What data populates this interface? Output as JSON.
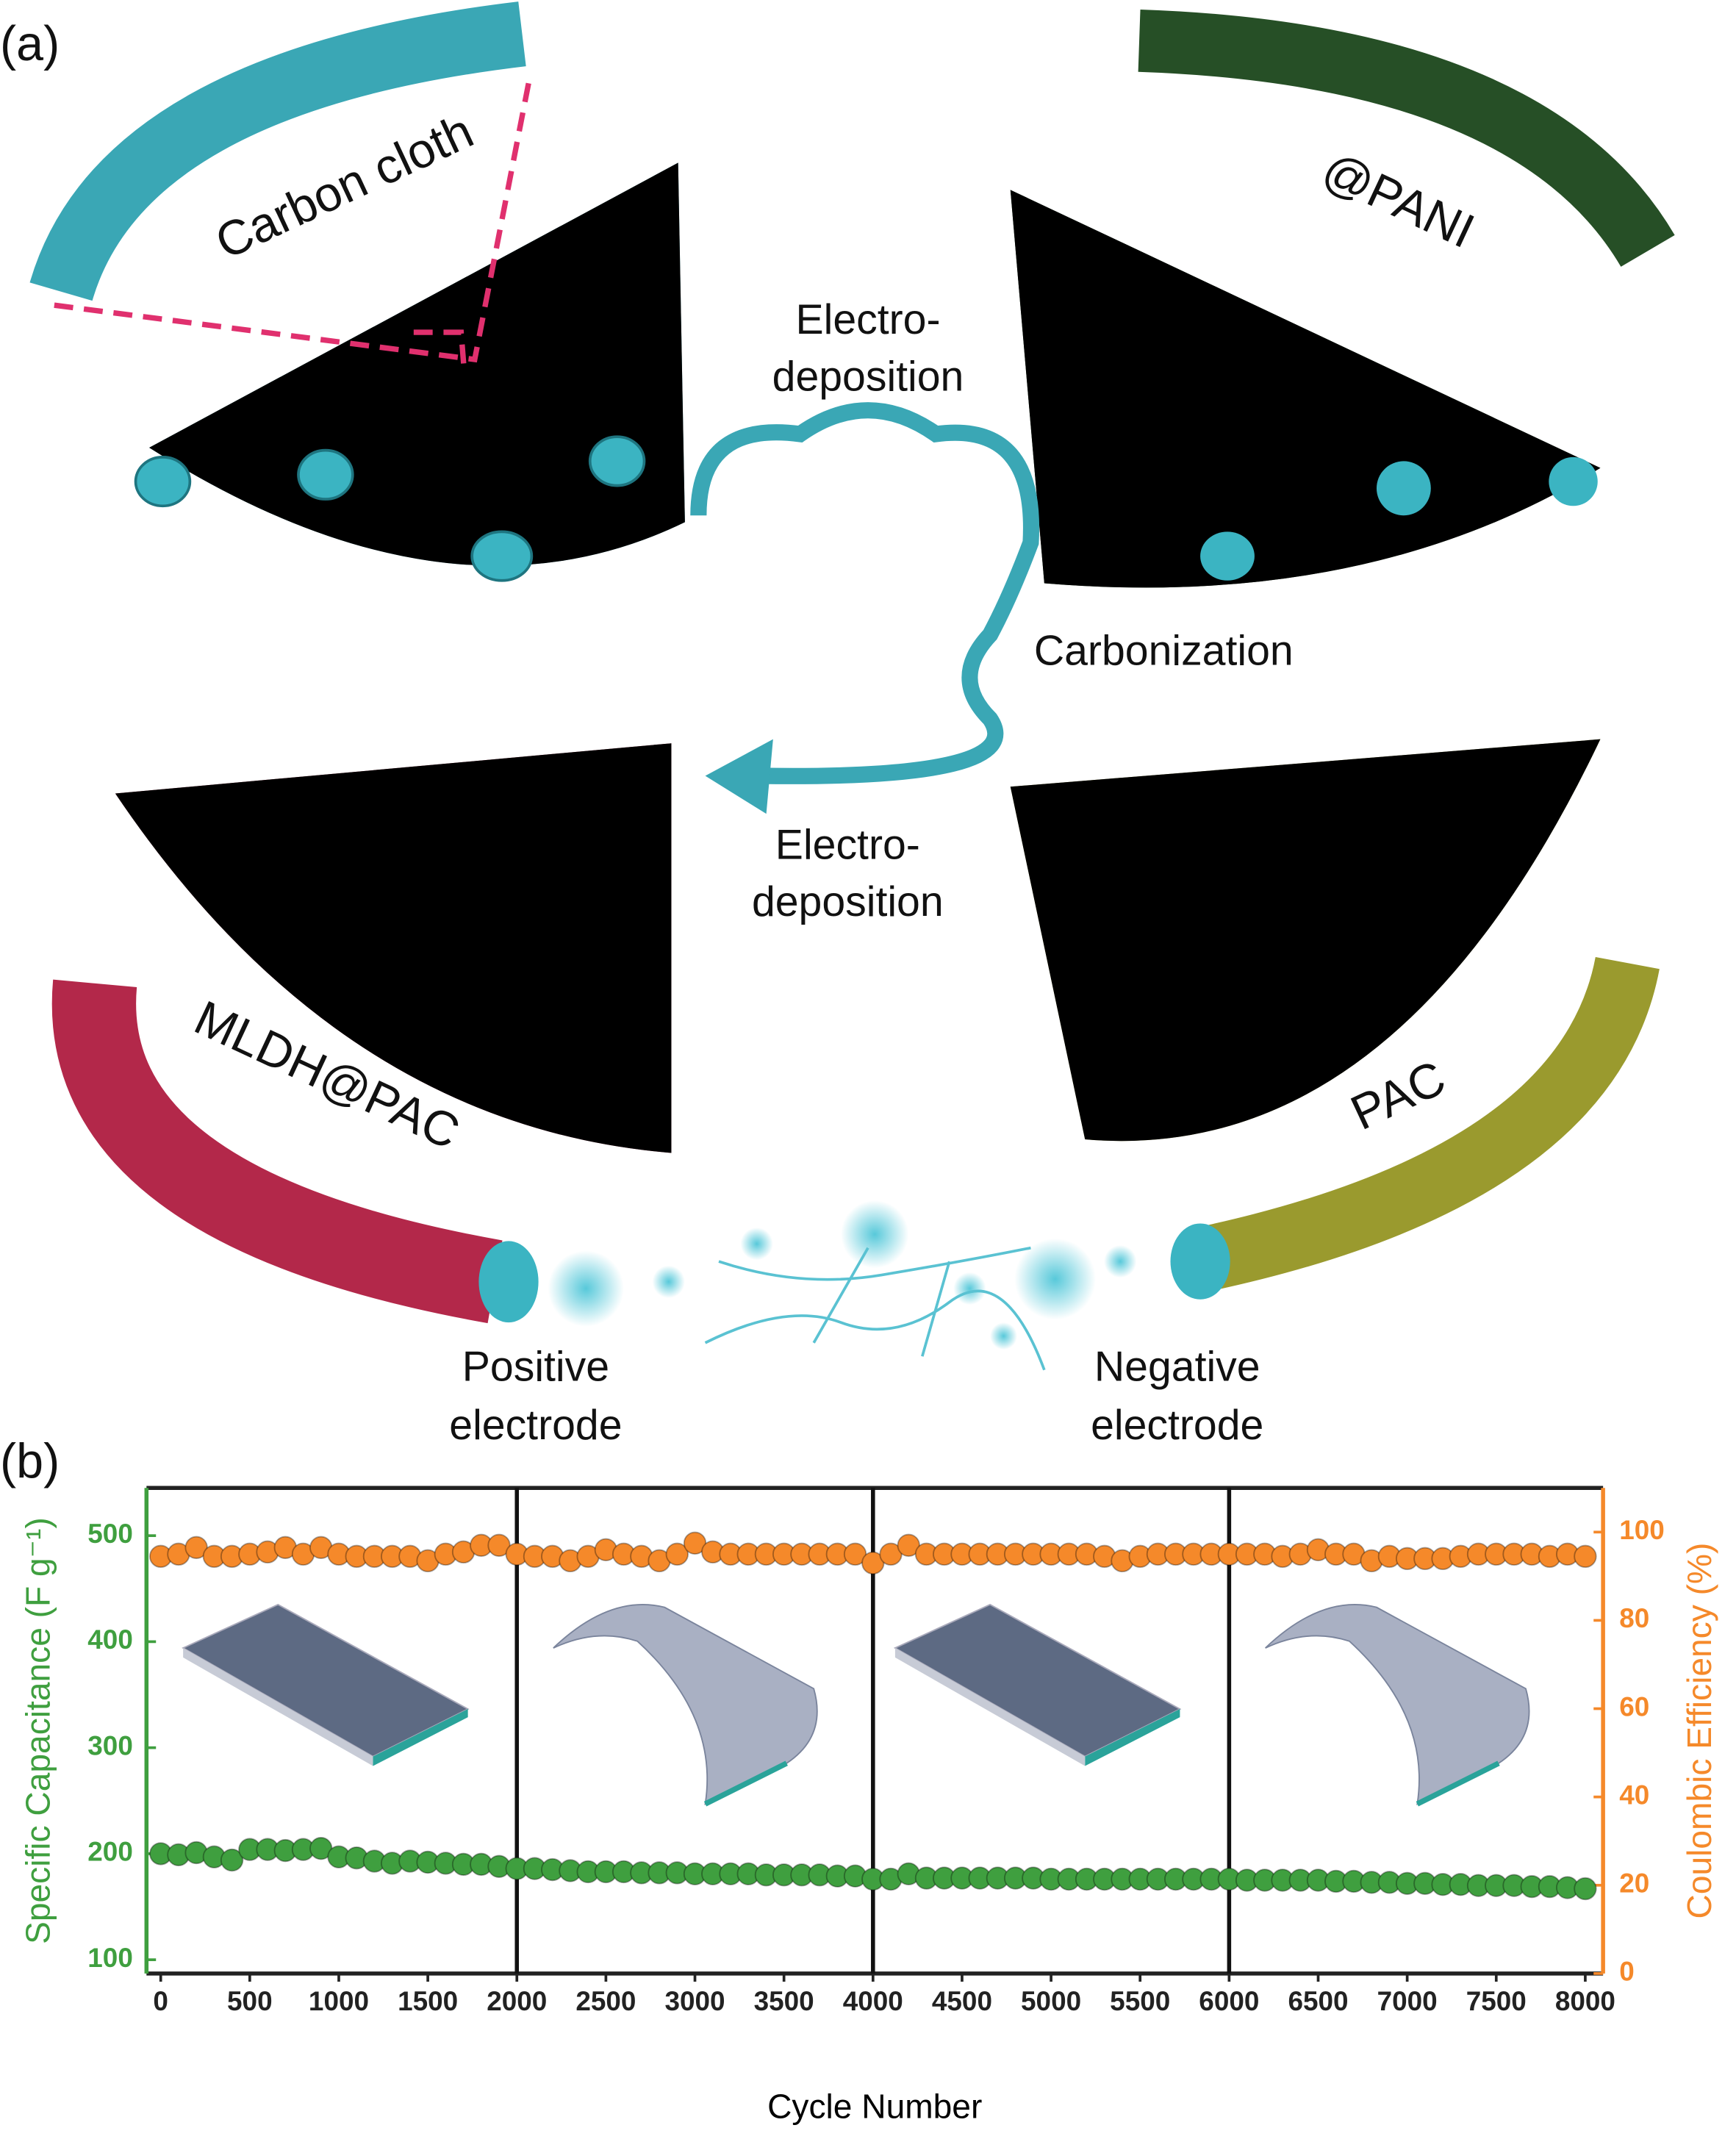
{
  "panel_a": {
    "label": "(a)",
    "carbon_cloth": "Carbon cloth",
    "pani": "@PANI",
    "electrodeposition_1": [
      "Electro-",
      "deposition"
    ],
    "carbonization": "Carbonization",
    "electrodeposition_2": [
      "Electro-",
      "deposition"
    ],
    "mldh": "MLDH@PAC",
    "pac": "PAC",
    "positive": [
      "Positive",
      "electrode"
    ],
    "negative": [
      "Negative",
      "electrode"
    ]
  },
  "chart_data": {
    "type": "scatter",
    "label": "(b)",
    "xlabel": "Cycle Number",
    "ylabel": "Specific Capacitance (F g⁻¹)",
    "y2label": "Coulombic Efficiency (%)",
    "xlim": [
      -80,
      8100
    ],
    "xticks": [
      0,
      500,
      1000,
      1500,
      2000,
      2500,
      3000,
      3500,
      4000,
      4500,
      5000,
      5500,
      6000,
      6500,
      7000,
      7500,
      8000
    ],
    "ylim": [
      87,
      545
    ],
    "yticks": [
      100,
      200,
      300,
      400,
      500
    ],
    "y2lim": [
      0,
      110
    ],
    "y2ticks": [
      0,
      20,
      40,
      60,
      80,
      100
    ],
    "dividers": [
      2000,
      4000,
      6000
    ],
    "x": [
      0,
      100,
      200,
      300,
      400,
      500,
      600,
      700,
      800,
      900,
      1000,
      1100,
      1200,
      1300,
      1400,
      1500,
      1600,
      1700,
      1800,
      1900,
      2000,
      2100,
      2200,
      2300,
      2400,
      2500,
      2600,
      2700,
      2800,
      2900,
      3000,
      3100,
      3200,
      3300,
      3400,
      3500,
      3600,
      3700,
      3800,
      3900,
      4000,
      4100,
      4200,
      4300,
      4400,
      4500,
      4600,
      4700,
      4800,
      4900,
      5000,
      5100,
      5200,
      5300,
      5400,
      5500,
      5600,
      5700,
      5800,
      5900,
      6000,
      6100,
      6200,
      6300,
      6400,
      6500,
      6600,
      6700,
      6800,
      6900,
      7000,
      7100,
      7200,
      7300,
      7400,
      7500,
      7600,
      7700,
      7800,
      7900,
      8000
    ],
    "series": [
      {
        "name": "Specific Capacitance",
        "color": "#3f9f3f",
        "axis": "y",
        "values": [
          200,
          199,
          201,
          197,
          194,
          204,
          204,
          203,
          204,
          205,
          197,
          196,
          193,
          191,
          193,
          192,
          191,
          190,
          190,
          188,
          186,
          186,
          185,
          184,
          183,
          183,
          183,
          182,
          182,
          182,
          181,
          181,
          181,
          181,
          180,
          180,
          180,
          180,
          179,
          179,
          176,
          176,
          181,
          177,
          177,
          177,
          177,
          177,
          177,
          177,
          176,
          176,
          176,
          176,
          176,
          176,
          176,
          176,
          176,
          176,
          176,
          175,
          175,
          175,
          175,
          175,
          174,
          174,
          173,
          173,
          172,
          172,
          171,
          171,
          170,
          170,
          170,
          169,
          169,
          168,
          167
        ]
      },
      {
        "name": "Coulombic Efficiency",
        "color": "#f5892a",
        "axis": "y2",
        "values": [
          94.5,
          95,
          96.5,
          94.5,
          94.5,
          95,
          95.5,
          96.5,
          95,
          96.5,
          95,
          94.5,
          94.5,
          94.5,
          94.5,
          93.5,
          95,
          95.5,
          97,
          97,
          95,
          94.5,
          94.5,
          93.5,
          94.5,
          96,
          95,
          94.5,
          93.5,
          95,
          97.5,
          95.5,
          95,
          95,
          95,
          95,
          95,
          95,
          95,
          95,
          93,
          95,
          97,
          95,
          95,
          95,
          95,
          95,
          95,
          95,
          95,
          95,
          95,
          94.5,
          93.5,
          94.5,
          95,
          95,
          95,
          95,
          95,
          95,
          95,
          94.5,
          95,
          96,
          95,
          95,
          93.5,
          94.5,
          94,
          94,
          94,
          94.5,
          95,
          95,
          95,
          95,
          94.5,
          95,
          94.5
        ]
      }
    ]
  }
}
